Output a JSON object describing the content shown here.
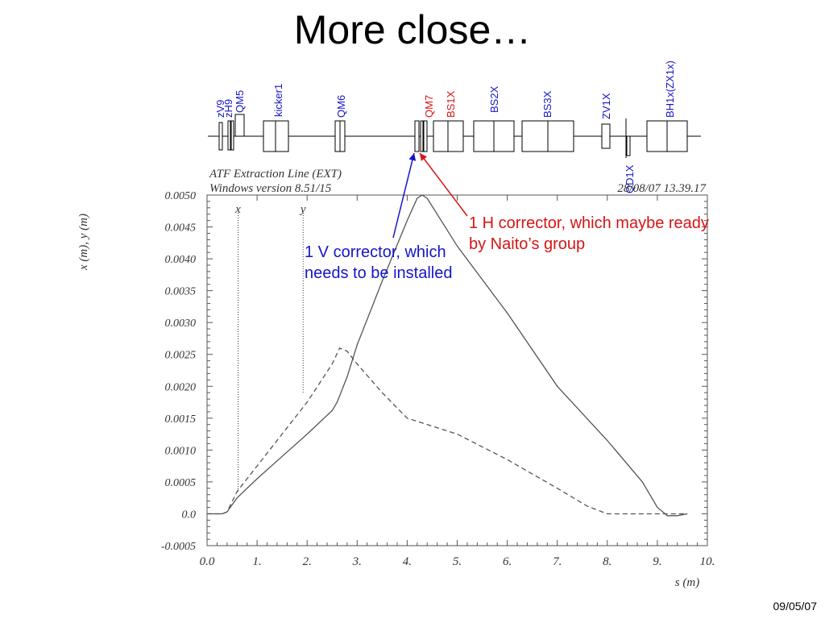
{
  "slide": {
    "title": "More close…",
    "date": "09/05/07"
  },
  "beamline": {
    "colors": {
      "blue": "#1515c8",
      "red": "#d61515"
    },
    "labels": [
      {
        "text": "zV9",
        "color": "blue"
      },
      {
        "text": "zH9",
        "color": "blue"
      },
      {
        "text": "QM5",
        "color": "blue"
      },
      {
        "text": "kicker1",
        "color": "blue"
      },
      {
        "text": "QM6",
        "color": "blue"
      },
      {
        "text": "QM7",
        "color": "red"
      },
      {
        "text": "BS1X",
        "color": "red"
      },
      {
        "text": "BS2X",
        "color": "blue"
      },
      {
        "text": "BS3X",
        "color": "blue"
      },
      {
        "text": "ZV1X",
        "color": "blue"
      },
      {
        "text": "QD1X",
        "color": "blue"
      },
      {
        "text": "BH1x(ZX1x)",
        "color": "blue"
      }
    ]
  },
  "callouts": {
    "v_corrector": "1 V corrector, which needs to be installed",
    "h_corrector": "1 H corrector, which maybe ready by Naito’s group"
  },
  "chart_data": {
    "type": "line",
    "header": {
      "program": "ATF Extraction Line (EXT)",
      "version": "Windows version 8.51/15",
      "timestamp": "28/08/07  13.39.17"
    },
    "xlabel": "s (m)",
    "ylabel": "x (m), y (m)",
    "xlim": [
      0,
      10
    ],
    "ylim": [
      -0.0005,
      0.005
    ],
    "x_ticks": [
      "0.0",
      "1.",
      "2.",
      "3.",
      "4.",
      "5.",
      "6.",
      "7.",
      "8.",
      "9.",
      "10."
    ],
    "y_ticks": [
      "-0.0005",
      "0.0",
      "0.0005",
      "0.0010",
      "0.0015",
      "0.0020",
      "0.0025",
      "0.0030",
      "0.0035",
      "0.0040",
      "0.0045",
      "0.0050"
    ],
    "series": [
      {
        "name": "x",
        "style": "solid",
        "points": [
          [
            0,
            0
          ],
          [
            0.3,
            0
          ],
          [
            0.4,
            3e-05
          ],
          [
            0.6,
            0.00025
          ],
          [
            1.0,
            0.00055
          ],
          [
            1.5,
            0.0009
          ],
          [
            2.0,
            0.00125
          ],
          [
            2.5,
            0.00162
          ],
          [
            2.6,
            0.00175
          ],
          [
            2.8,
            0.00215
          ],
          [
            3.0,
            0.00265
          ],
          [
            3.5,
            0.00365
          ],
          [
            4.0,
            0.0046
          ],
          [
            4.2,
            0.00495
          ],
          [
            4.3,
            0.005
          ],
          [
            4.4,
            0.00495
          ],
          [
            5.0,
            0.0042
          ],
          [
            6.0,
            0.00315
          ],
          [
            7.0,
            0.002
          ],
          [
            8.0,
            0.00115
          ],
          [
            8.7,
            0.0005
          ],
          [
            9.0,
            0.0001
          ],
          [
            9.2,
            -3e-05
          ],
          [
            9.4,
            -3e-05
          ],
          [
            9.6,
            0.0
          ]
        ]
      },
      {
        "name": "y",
        "style": "dashed",
        "points": [
          [
            0,
            0
          ],
          [
            0.3,
            0
          ],
          [
            0.4,
            3e-05
          ],
          [
            0.6,
            0.00035
          ],
          [
            1.0,
            0.00075
          ],
          [
            1.5,
            0.00125
          ],
          [
            2.0,
            0.00175
          ],
          [
            2.5,
            0.00235
          ],
          [
            2.65,
            0.0026
          ],
          [
            2.8,
            0.00255
          ],
          [
            3.0,
            0.00235
          ],
          [
            3.5,
            0.0019
          ],
          [
            4.0,
            0.0015
          ],
          [
            5.0,
            0.00125
          ],
          [
            6.0,
            0.00085
          ],
          [
            7.0,
            0.0004
          ],
          [
            7.6,
            0.00012
          ],
          [
            8.0,
            0.0
          ],
          [
            9.6,
            0.0
          ]
        ]
      }
    ],
    "markers": [
      {
        "label": "x",
        "s": 0.62,
        "value": 0.00035
      },
      {
        "label": "y",
        "s": 1.92,
        "value": 0.0019
      }
    ],
    "grid": false
  }
}
